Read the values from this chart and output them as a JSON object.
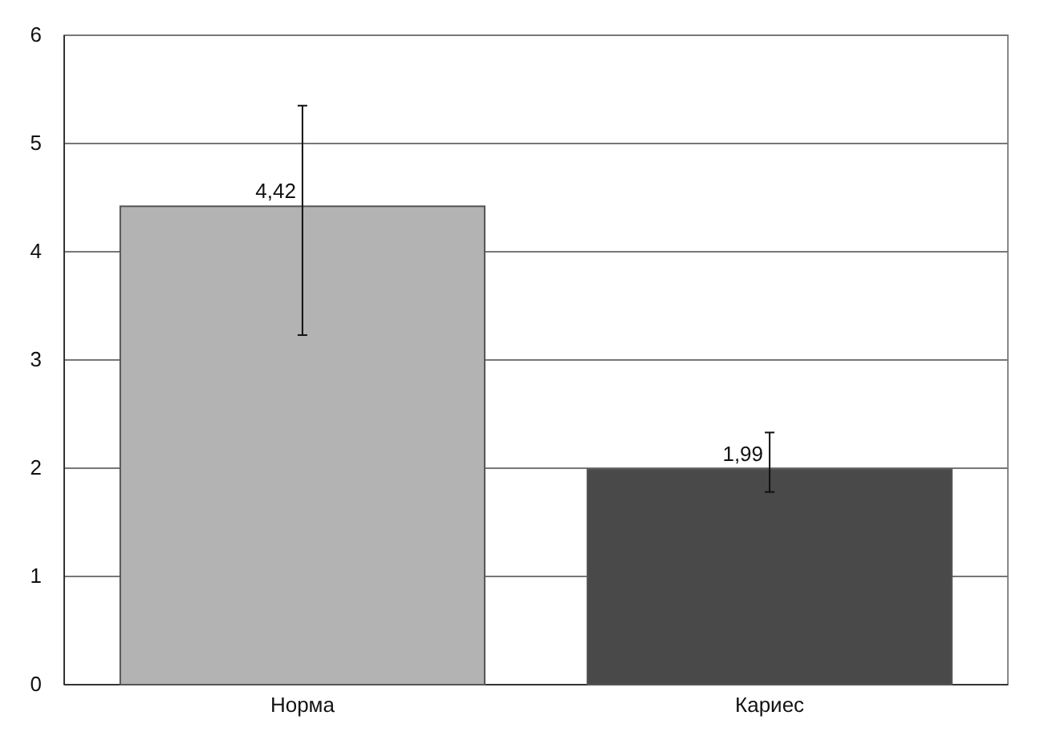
{
  "chart_data": {
    "type": "bar",
    "categories": [
      "Норма",
      "Кариес"
    ],
    "values": [
      4.42,
      1.99
    ],
    "colors": [
      "#b3b3b3",
      "#494949"
    ],
    "errors": [
      [
        3.23,
        5.35
      ],
      [
        1.78,
        2.33
      ]
    ],
    "value_labels": [
      "4,42",
      "1,99"
    ],
    "ylim": [
      0,
      6
    ],
    "yticks": [
      0,
      1,
      2,
      3,
      4,
      5,
      6
    ],
    "grid": "y"
  }
}
